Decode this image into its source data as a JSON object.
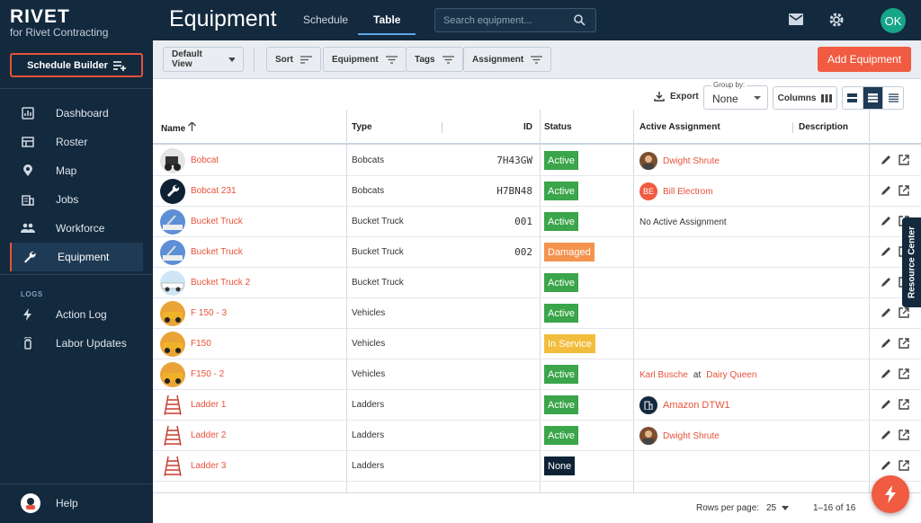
{
  "brand": {
    "logo": "RIVET",
    "subtitle": "for Rivet Contracting"
  },
  "sidebar": {
    "schedule_builder": "Schedule Builder",
    "items": [
      {
        "label": "Dashboard",
        "icon": "dashboard-icon"
      },
      {
        "label": "Roster",
        "icon": "roster-icon"
      },
      {
        "label": "Map",
        "icon": "map-pin-icon"
      },
      {
        "label": "Jobs",
        "icon": "jobs-icon"
      },
      {
        "label": "Workforce",
        "icon": "workforce-icon"
      },
      {
        "label": "Equipment",
        "icon": "wrench-icon",
        "active": true
      }
    ],
    "logs_section": "LOGS",
    "log_items": [
      {
        "label": "Action Log",
        "icon": "lightning-icon"
      },
      {
        "label": "Labor Updates",
        "icon": "labor-updates-icon"
      }
    ],
    "help": "Help"
  },
  "header": {
    "title": "Equipment",
    "tabs": [
      {
        "label": "Schedule"
      },
      {
        "label": "Table",
        "selected": true
      }
    ],
    "search_placeholder": "Search equipment...",
    "avatar_initials": "OK"
  },
  "toolbar": {
    "default_view": "Default View",
    "filters": [
      "Sort",
      "Equipment",
      "Tags",
      "Assignment"
    ],
    "add_equipment": "Add Equipment",
    "export": "Export",
    "group_by_label": "Group by:",
    "group_by_value": "None",
    "columns": "Columns"
  },
  "table": {
    "headers": {
      "name": "Name",
      "type": "Type",
      "id": "ID",
      "status": "Status",
      "assignment": "Active Assignment",
      "description": "Description"
    },
    "rows": [
      {
        "name": "Bobcat",
        "type": "Bobcats",
        "id": "7H43GW",
        "status": "Active",
        "assignment": {
          "kind": "person",
          "name": "Dwight Shrute"
        }
      },
      {
        "name": "Bobcat 231",
        "type": "Bobcats",
        "id": "H7BN48",
        "status": "Active",
        "assignment": {
          "kind": "initials",
          "initials": "BE",
          "name": "Bill Electrom"
        }
      },
      {
        "name": "Bucket Truck",
        "type": "Bucket Truck",
        "id": "001",
        "status": "Active",
        "assignment": {
          "kind": "text",
          "text": "No Active Assignment"
        }
      },
      {
        "name": "Bucket Truck",
        "type": "Bucket Truck",
        "id": "002",
        "status": "Damaged",
        "assignment": null
      },
      {
        "name": "Bucket Truck 2",
        "type": "Bucket Truck",
        "id": "",
        "status": "Active",
        "assignment": null
      },
      {
        "name": "F 150 - 3",
        "type": "Vehicles",
        "id": "",
        "status": "Active",
        "assignment": null
      },
      {
        "name": "F150",
        "type": "Vehicles",
        "id": "",
        "status": "In Service",
        "assignment": null
      },
      {
        "name": "F150 - 2",
        "type": "Vehicles",
        "id": "",
        "status": "Active",
        "assignment": {
          "kind": "job",
          "name": "Karl Busche",
          "at": "at",
          "place": "Dairy Queen"
        }
      },
      {
        "name": "Ladder 1",
        "type": "Ladders",
        "id": "",
        "status": "Active",
        "assignment": {
          "kind": "building",
          "name": "Amazon DTW1"
        }
      },
      {
        "name": "Ladder 2",
        "type": "Ladders",
        "id": "",
        "status": "Active",
        "assignment": {
          "kind": "person",
          "name": "Dwight Shrute"
        }
      },
      {
        "name": "Ladder 3",
        "type": "Ladders",
        "id": "",
        "status": "None",
        "assignment": null
      }
    ]
  },
  "footer": {
    "rows_per_page_label": "Rows per page:",
    "rows_per_page": "25",
    "range": "1–16 of 16"
  },
  "resource_center": "Resource Center",
  "colors": {
    "sidebar": "#13293d",
    "accent": "#f05b41",
    "active": "#3aa54a",
    "damaged": "#f4934e",
    "in_service": "#f2bd3c"
  }
}
